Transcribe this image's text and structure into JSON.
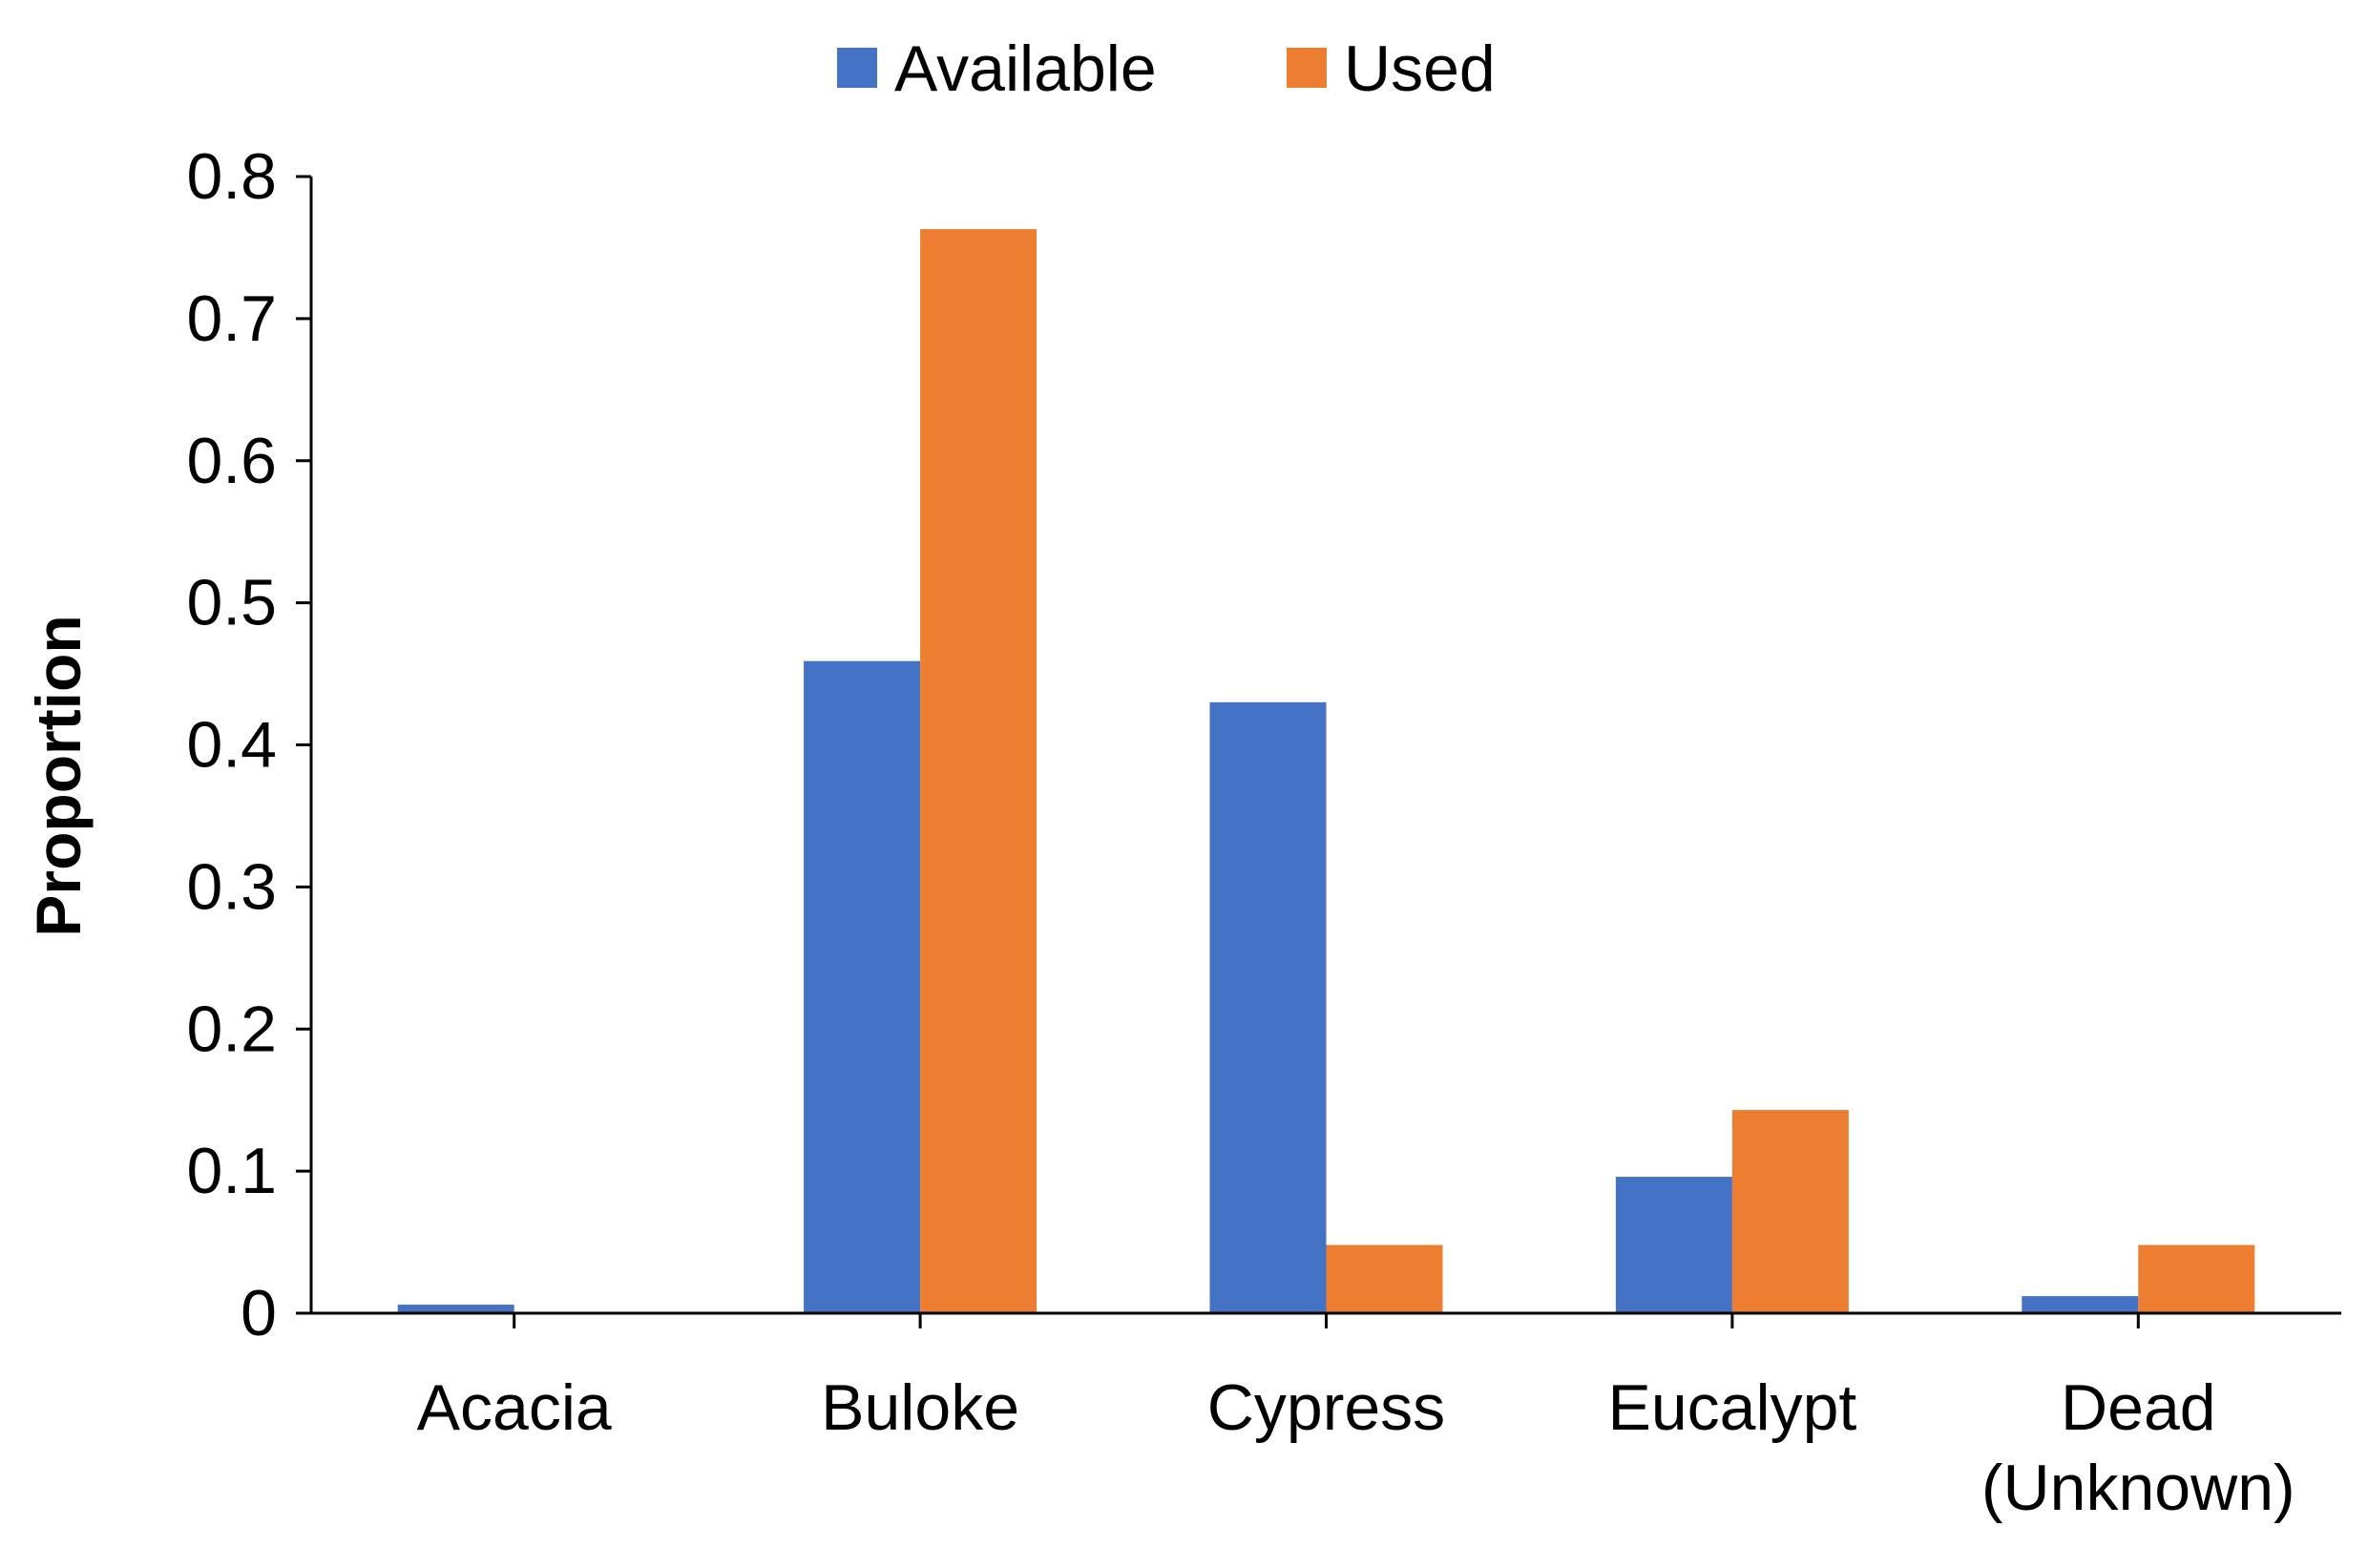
{
  "chart_data": {
    "type": "bar",
    "title": "",
    "xlabel": "",
    "ylabel": "Proportion",
    "ylim": [
      0,
      0.8
    ],
    "yticks": [
      "0",
      "0.1",
      "0.2",
      "0.3",
      "0.4",
      "0.5",
      "0.6",
      "0.7",
      "0.8"
    ],
    "grid": false,
    "legend_position": "top-center",
    "categories": [
      [
        "Acacia"
      ],
      [
        "Buloke"
      ],
      [
        "Cypress"
      ],
      [
        "Eucalypt"
      ],
      [
        "Dead",
        "(Unknown)"
      ]
    ],
    "series": [
      {
        "name": "Available",
        "color": "#4472C4",
        "values": [
          0.006,
          0.459,
          0.43,
          0.096,
          0.012
        ]
      },
      {
        "name": "Used",
        "color": "#ED7D31",
        "values": [
          0,
          0.763,
          0.048,
          0.143,
          0.048
        ]
      }
    ]
  }
}
